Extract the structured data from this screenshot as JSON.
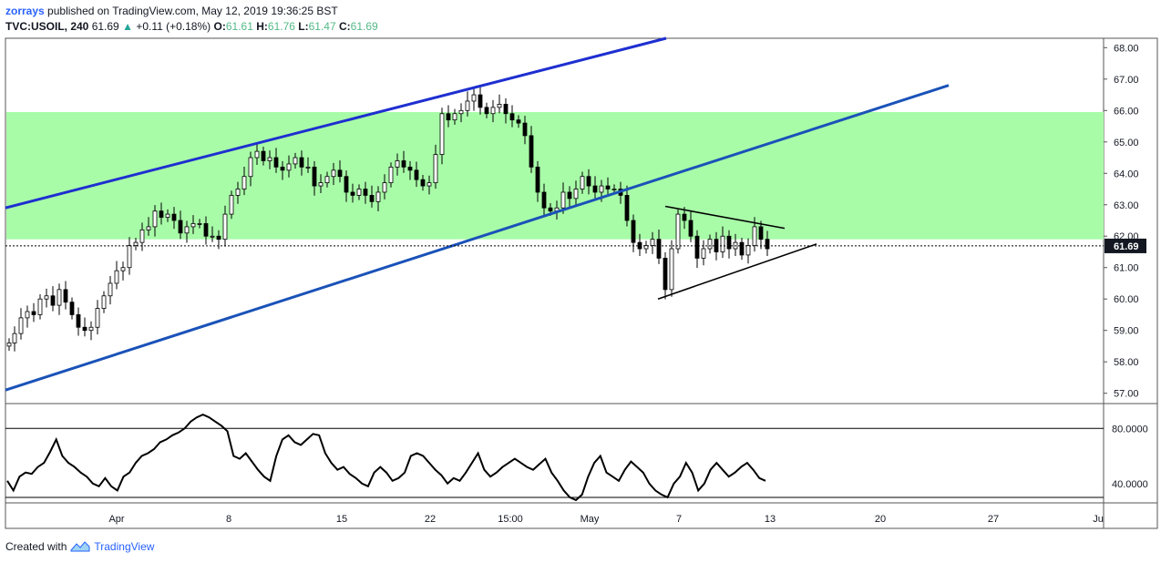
{
  "header": {
    "author": "zorrays",
    "published_text": "published on TradingView.com, May 12, 2019 19:36:25 BST",
    "symbol": "TVC:USOIL, 240",
    "last": "61.69",
    "change": "+0.11 (+0.18%)",
    "o_label": "O:",
    "o_value": "61.61",
    "h_label": "H:",
    "h_value": "61.76",
    "l_label": "L:",
    "l_value": "61.47",
    "c_label": "C:",
    "c_value": "61.69"
  },
  "footer": {
    "created_with": "Created with",
    "brand": "TradingView"
  },
  "colors": {
    "zone": "#a8fca8",
    "trend": "#1e2fd0",
    "trend2": "#1a52b8",
    "axis": "#555555"
  },
  "chart_data": {
    "type": "candlestick",
    "price_axis": {
      "min": 56.7,
      "max": 68.3,
      "ticks": [
        "68.00",
        "67.00",
        "66.00",
        "65.00",
        "64.00",
        "63.00",
        "62.00",
        "61.00",
        "60.00",
        "59.00",
        "58.00",
        "57.00"
      ]
    },
    "last_price_label": "61.69",
    "zone": {
      "low": 61.9,
      "high": 65.95
    },
    "x_labels": [
      "Apr",
      "8",
      "15",
      "22",
      "15:00",
      "May",
      "7",
      "13",
      "20",
      "27",
      "Ju"
    ],
    "close_series": [
      [
        0,
        58.6
      ],
      [
        6,
        58.9
      ],
      [
        13,
        59.4
      ],
      [
        20,
        59.6
      ],
      [
        27,
        59.5
      ],
      [
        34,
        60.0
      ],
      [
        41,
        60.1
      ],
      [
        48,
        59.8
      ],
      [
        55,
        60.3
      ],
      [
        62,
        59.9
      ],
      [
        69,
        59.5
      ],
      [
        76,
        59.1
      ],
      [
        83,
        59.0
      ],
      [
        90,
        59.1
      ],
      [
        97,
        59.7
      ],
      [
        104,
        60.1
      ],
      [
        111,
        60.5
      ],
      [
        118,
        60.9
      ],
      [
        125,
        61.0
      ],
      [
        132,
        61.7
      ],
      [
        139,
        61.8
      ],
      [
        146,
        62.2
      ],
      [
        153,
        62.3
      ],
      [
        160,
        62.8
      ],
      [
        167,
        62.6
      ],
      [
        174,
        62.7
      ],
      [
        181,
        62.5
      ],
      [
        188,
        62.1
      ],
      [
        195,
        62.3
      ],
      [
        202,
        62.4
      ],
      [
        209,
        62.4
      ],
      [
        216,
        62.0
      ],
      [
        223,
        62.0
      ],
      [
        230,
        61.9
      ],
      [
        237,
        62.7
      ],
      [
        244,
        63.3
      ],
      [
        251,
        63.5
      ],
      [
        258,
        63.9
      ],
      [
        265,
        64.5
      ],
      [
        272,
        64.7
      ],
      [
        279,
        64.4
      ],
      [
        286,
        64.5
      ],
      [
        293,
        64.2
      ],
      [
        300,
        64.1
      ],
      [
        307,
        64.3
      ],
      [
        314,
        64.5
      ],
      [
        321,
        64.2
      ],
      [
        328,
        64.2
      ],
      [
        335,
        63.6
      ],
      [
        342,
        63.7
      ],
      [
        349,
        63.9
      ],
      [
        356,
        64.1
      ],
      [
        363,
        63.9
      ],
      [
        370,
        63.4
      ],
      [
        377,
        63.3
      ],
      [
        384,
        63.5
      ],
      [
        391,
        63.3
      ],
      [
        398,
        63.1
      ],
      [
        405,
        63.4
      ],
      [
        412,
        63.7
      ],
      [
        419,
        64.2
      ],
      [
        426,
        64.4
      ],
      [
        433,
        64.2
      ],
      [
        440,
        64.1
      ],
      [
        447,
        63.8
      ],
      [
        454,
        63.6
      ],
      [
        461,
        63.7
      ],
      [
        468,
        64.6
      ],
      [
        475,
        65.9
      ],
      [
        482,
        65.7
      ],
      [
        489,
        65.9
      ],
      [
        496,
        66.0
      ],
      [
        503,
        66.3
      ],
      [
        510,
        66.5
      ],
      [
        517,
        66.1
      ],
      [
        524,
        65.9
      ],
      [
        531,
        66.1
      ],
      [
        538,
        66.2
      ],
      [
        545,
        65.9
      ],
      [
        552,
        65.7
      ],
      [
        559,
        65.6
      ],
      [
        566,
        65.2
      ],
      [
        573,
        64.2
      ],
      [
        580,
        63.4
      ],
      [
        587,
        62.9
      ],
      [
        594,
        62.8
      ],
      [
        601,
        62.9
      ],
      [
        608,
        63.4
      ],
      [
        615,
        63.2
      ],
      [
        622,
        63.5
      ],
      [
        629,
        63.9
      ],
      [
        636,
        63.6
      ],
      [
        643,
        63.4
      ],
      [
        650,
        63.6
      ],
      [
        657,
        63.5
      ],
      [
        664,
        63.5
      ],
      [
        671,
        63.3
      ],
      [
        678,
        62.5
      ],
      [
        685,
        61.8
      ],
      [
        692,
        61.6
      ],
      [
        699,
        61.7
      ],
      [
        706,
        61.9
      ],
      [
        713,
        61.3
      ],
      [
        720,
        60.3
      ],
      [
        727,
        61.6
      ],
      [
        734,
        62.7
      ],
      [
        741,
        62.5
      ],
      [
        748,
        62.0
      ],
      [
        755,
        61.3
      ],
      [
        762,
        61.6
      ],
      [
        769,
        61.9
      ],
      [
        776,
        61.5
      ],
      [
        783,
        62.0
      ],
      [
        790,
        61.6
      ],
      [
        797,
        61.8
      ],
      [
        804,
        61.4
      ],
      [
        811,
        61.7
      ],
      [
        818,
        62.3
      ],
      [
        825,
        61.9
      ],
      [
        832,
        61.6
      ]
    ],
    "overlay_lines": [
      {
        "type": "upper_channel",
        "from": [
          "x0",
          62.9
        ],
        "to": [
          "x725",
          68.3
        ]
      },
      {
        "type": "lower_channel",
        "from": [
          "x0",
          57.1
        ],
        "to": [
          "x1035",
          66.8
        ]
      },
      {
        "type": "triangle_top",
        "from": [
          "x724",
          62.95
        ],
        "to": [
          "x855",
          62.25
        ]
      },
      {
        "type": "triangle_bottom",
        "from": [
          "x716",
          60.0
        ],
        "to": [
          "x890",
          61.75
        ]
      }
    ],
    "oscillator": {
      "ticks": [
        "80.0000",
        "40.0000"
      ],
      "levels": [
        80,
        30
      ],
      "range": [
        26,
        98
      ],
      "values": [
        42,
        35,
        45,
        48,
        47,
        52,
        55,
        63,
        72,
        60,
        55,
        52,
        48,
        45,
        40,
        38,
        44,
        38,
        35,
        45,
        48,
        55,
        60,
        62,
        65,
        70,
        72,
        75,
        77,
        80,
        85,
        88,
        90,
        88,
        85,
        82,
        78,
        60,
        58,
        62,
        56,
        50,
        45,
        42,
        60,
        72,
        75,
        70,
        68,
        72,
        76,
        75,
        62,
        55,
        50,
        52,
        47,
        44,
        40,
        38,
        48,
        52,
        48,
        42,
        44,
        48,
        60,
        62,
        60,
        55,
        50,
        46,
        40,
        44,
        42,
        48,
        55,
        62,
        50,
        45,
        48,
        52,
        55,
        58,
        55,
        52,
        50,
        54,
        58,
        48,
        42,
        35,
        30,
        28,
        32,
        45,
        55,
        60,
        48,
        45,
        42,
        50,
        56,
        52,
        48,
        40,
        35,
        32,
        30,
        40,
        45,
        55,
        48,
        35,
        40,
        50,
        55,
        50,
        45,
        48,
        52,
        55,
        50,
        44,
        42
      ]
    }
  }
}
